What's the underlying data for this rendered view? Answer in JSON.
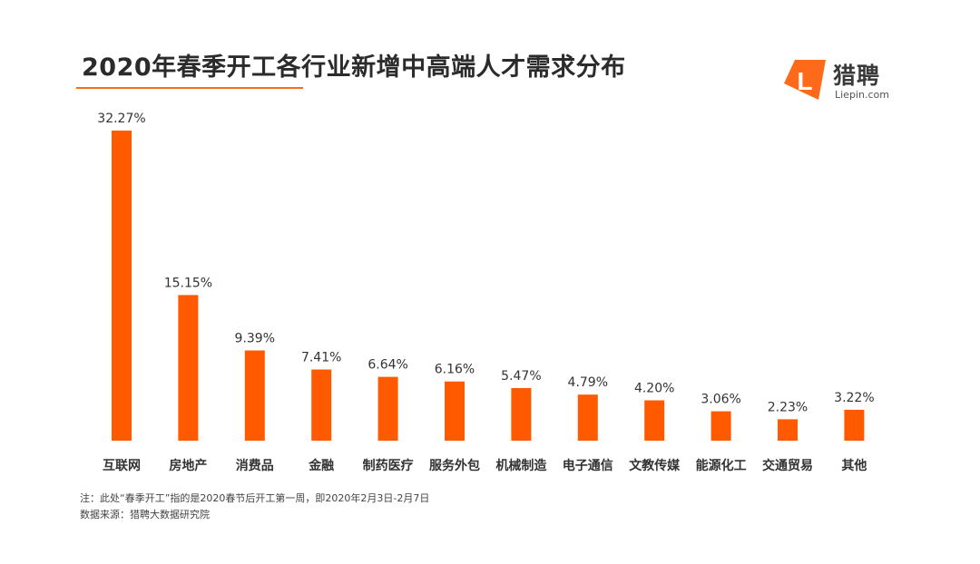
{
  "header": {
    "title": "2020年春季开工各行业新增中高端人才需求分布"
  },
  "logo": {
    "letter": "L",
    "cn_name": "猎聘",
    "en_name": "Liepin.com"
  },
  "colors": {
    "bar": "#ff5a00",
    "accent": "#ff6a1a",
    "text": "#333333"
  },
  "chart_data": {
    "type": "bar",
    "title": "2020年春季开工各行业新增中高端人才需求分布",
    "xlabel": "",
    "ylabel": "",
    "grid": false,
    "legend": "none",
    "ylim": [
      0,
      35
    ],
    "categories": [
      "互联网",
      "房地产",
      "消费品",
      "金融",
      "制药医疗",
      "服务外包",
      "机械制造",
      "电子通信",
      "文教传媒",
      "能源化工",
      "交通贸易",
      "其他"
    ],
    "values": [
      32.27,
      15.15,
      9.39,
      7.41,
      6.64,
      6.16,
      5.47,
      4.79,
      4.2,
      3.06,
      2.23,
      3.22
    ],
    "value_labels": [
      "32.27%",
      "15.15%",
      "9.39%",
      "7.41%",
      "6.64%",
      "6.16%",
      "5.47%",
      "4.79%",
      "4.20%",
      "3.06%",
      "2.23%",
      "3.22%"
    ]
  },
  "notes": {
    "note": "注：此处“春季开工”指的是2020春节后开工第一周，即2020年2月3日-2月7日",
    "source": "数据来源：猎聘大数据研究院"
  }
}
